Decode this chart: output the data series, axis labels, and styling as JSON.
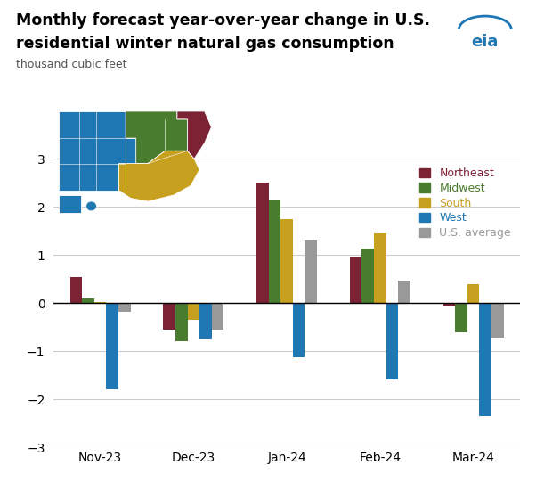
{
  "title_line1": "Monthly forecast year-over-year change in U.S.",
  "title_line2": "residential winter natural gas consumption",
  "subtitle": "thousand cubic feet",
  "months": [
    "Nov-23",
    "Dec-23",
    "Jan-24",
    "Feb-24",
    "Mar-24"
  ],
  "series": {
    "Northeast": {
      "color": "#7b2335",
      "values": [
        0.55,
        -0.55,
        2.5,
        0.97,
        -0.05
      ]
    },
    "Midwest": {
      "color": "#4a7c2f",
      "values": [
        0.1,
        -0.8,
        2.15,
        1.13,
        -0.6
      ]
    },
    "South": {
      "color": "#c8a020",
      "values": [
        0.02,
        -0.35,
        1.75,
        1.44,
        0.4
      ]
    },
    "West": {
      "color": "#1f77b4",
      "values": [
        -1.8,
        -0.75,
        -1.12,
        -1.58,
        -2.35
      ]
    },
    "U.S. average": {
      "color": "#999999",
      "values": [
        -0.18,
        -0.55,
        1.3,
        0.47,
        -0.72
      ]
    }
  },
  "ylim": [
    -3,
    3
  ],
  "yticks": [
    -3,
    -2,
    -1,
    0,
    1,
    2,
    3
  ],
  "background_color": "#ffffff",
  "grid_color": "#cccccc",
  "legend_labels": [
    "Northeast",
    "Midwest",
    "South",
    "West",
    "U.S. average"
  ],
  "legend_colors": [
    "#7b2335",
    "#4a7c2f",
    "#c8a020",
    "#1f77b4",
    "#999999"
  ],
  "bar_width": 0.13,
  "figsize": [
    6.02,
    5.4
  ],
  "dpi": 100
}
